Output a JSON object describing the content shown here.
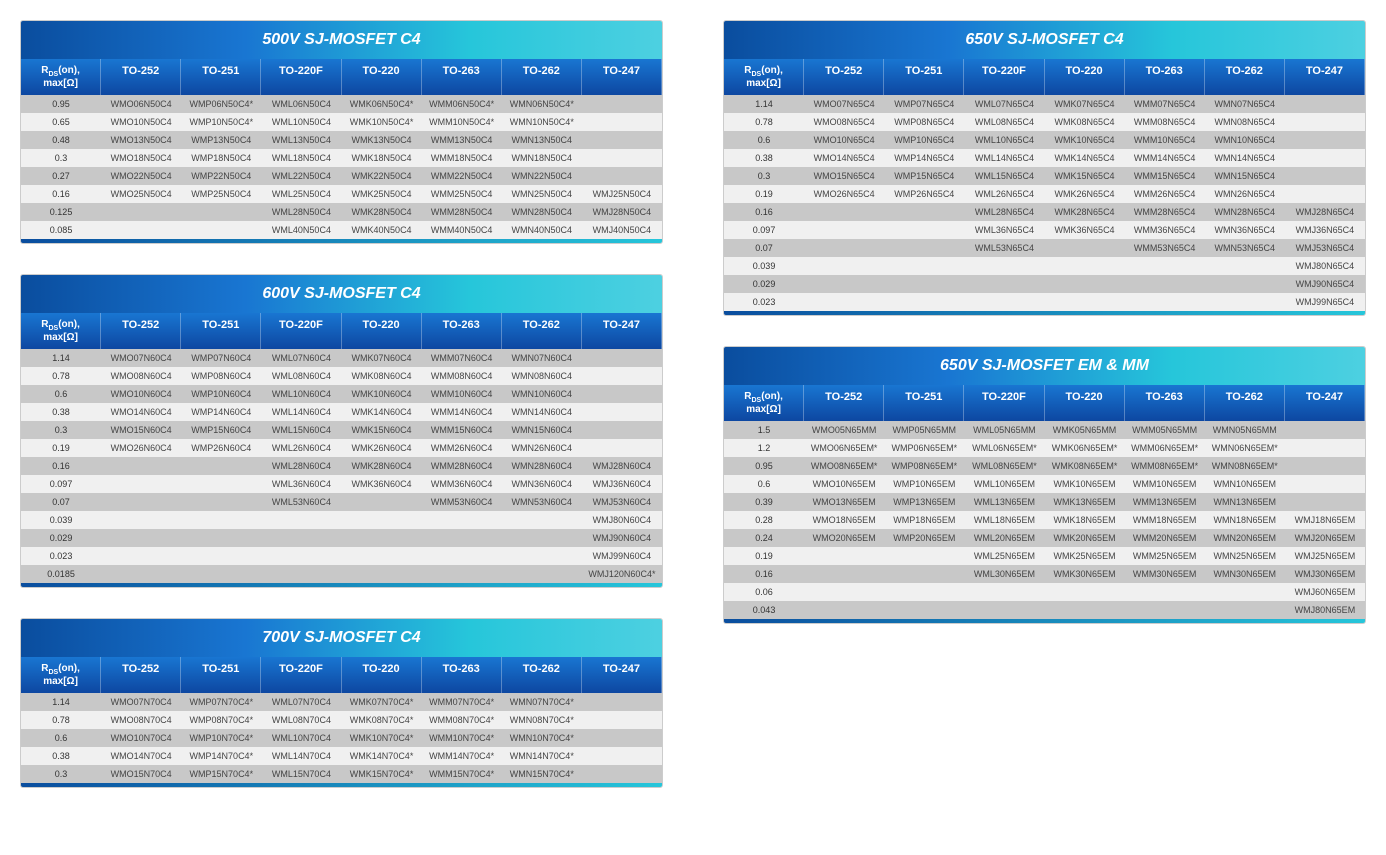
{
  "columns": [
    "R_DS(on), max[Ω]",
    "TO-252",
    "TO-251",
    "TO-220F",
    "TO-220",
    "TO-263",
    "TO-262",
    "TO-247"
  ],
  "tables": [
    {
      "title": "500V SJ-MOSFET C4",
      "col": 0,
      "rows": [
        [
          "0.95",
          "WMO06N50C4",
          "WMP06N50C4*",
          "WML06N50C4",
          "WMK06N50C4*",
          "WMM06N50C4*",
          "WMN06N50C4*",
          ""
        ],
        [
          "0.65",
          "WMO10N50C4",
          "WMP10N50C4*",
          "WML10N50C4",
          "WMK10N50C4*",
          "WMM10N50C4*",
          "WMN10N50C4*",
          ""
        ],
        [
          "0.48",
          "WMO13N50C4",
          "WMP13N50C4",
          "WML13N50C4",
          "WMK13N50C4",
          "WMM13N50C4",
          "WMN13N50C4",
          ""
        ],
        [
          "0.3",
          "WMO18N50C4",
          "WMP18N50C4",
          "WML18N50C4",
          "WMK18N50C4",
          "WMM18N50C4",
          "WMN18N50C4",
          ""
        ],
        [
          "0.27",
          "WMO22N50C4",
          "WMP22N50C4",
          "WML22N50C4",
          "WMK22N50C4",
          "WMM22N50C4",
          "WMN22N50C4",
          ""
        ],
        [
          "0.16",
          "WMO25N50C4",
          "WMP25N50C4",
          "WML25N50C4",
          "WMK25N50C4",
          "WMM25N50C4",
          "WMN25N50C4",
          "WMJ25N50C4"
        ],
        [
          "0.125",
          "",
          "",
          "WML28N50C4",
          "WMK28N50C4",
          "WMM28N50C4",
          "WMN28N50C4",
          "WMJ28N50C4"
        ],
        [
          "0.085",
          "",
          "",
          "WML40N50C4",
          "WMK40N50C4",
          "WMM40N50C4",
          "WMN40N50C4",
          "WMJ40N50C4"
        ]
      ]
    },
    {
      "title": "600V SJ-MOSFET C4",
      "col": 0,
      "rows": [
        [
          "1.14",
          "WMO07N60C4",
          "WMP07N60C4",
          "WML07N60C4",
          "WMK07N60C4",
          "WMM07N60C4",
          "WMN07N60C4",
          ""
        ],
        [
          "0.78",
          "WMO08N60C4",
          "WMP08N60C4",
          "WML08N60C4",
          "WMK08N60C4",
          "WMM08N60C4",
          "WMN08N60C4",
          ""
        ],
        [
          "0.6",
          "WMO10N60C4",
          "WMP10N60C4",
          "WML10N60C4",
          "WMK10N60C4",
          "WMM10N60C4",
          "WMN10N60C4",
          ""
        ],
        [
          "0.38",
          "WMO14N60C4",
          "WMP14N60C4",
          "WML14N60C4",
          "WMK14N60C4",
          "WMM14N60C4",
          "WMN14N60C4",
          ""
        ],
        [
          "0.3",
          "WMO15N60C4",
          "WMP15N60C4",
          "WML15N60C4",
          "WMK15N60C4",
          "WMM15N60C4",
          "WMN15N60C4",
          ""
        ],
        [
          "0.19",
          "WMO26N60C4",
          "WMP26N60C4",
          "WML26N60C4",
          "WMK26N60C4",
          "WMM26N60C4",
          "WMN26N60C4",
          ""
        ],
        [
          "0.16",
          "",
          "",
          "WML28N60C4",
          "WMK28N60C4",
          "WMM28N60C4",
          "WMN28N60C4",
          "WMJ28N60C4"
        ],
        [
          "0.097",
          "",
          "",
          "WML36N60C4",
          "WMK36N60C4",
          "WMM36N60C4",
          "WMN36N60C4",
          "WMJ36N60C4"
        ],
        [
          "0.07",
          "",
          "",
          "WML53N60C4",
          "",
          "WMM53N60C4",
          "WMN53N60C4",
          "WMJ53N60C4"
        ],
        [
          "0.039",
          "",
          "",
          "",
          "",
          "",
          "",
          "WMJ80N60C4"
        ],
        [
          "0.029",
          "",
          "",
          "",
          "",
          "",
          "",
          "WMJ90N60C4"
        ],
        [
          "0.023",
          "",
          "",
          "",
          "",
          "",
          "",
          "WMJ99N60C4"
        ],
        [
          "0.0185",
          "",
          "",
          "",
          "",
          "",
          "",
          "WMJ120N60C4*"
        ]
      ]
    },
    {
      "title": "700V SJ-MOSFET C4",
      "col": 0,
      "rows": [
        [
          "1.14",
          "WMO07N70C4",
          "WMP07N70C4*",
          "WML07N70C4",
          "WMK07N70C4*",
          "WMM07N70C4*",
          "WMN07N70C4*",
          ""
        ],
        [
          "0.78",
          "WMO08N70C4",
          "WMP08N70C4*",
          "WML08N70C4",
          "WMK08N70C4*",
          "WMM08N70C4*",
          "WMN08N70C4*",
          ""
        ],
        [
          "0.6",
          "WMO10N70C4",
          "WMP10N70C4*",
          "WML10N70C4",
          "WMK10N70C4*",
          "WMM10N70C4*",
          "WMN10N70C4*",
          ""
        ],
        [
          "0.38",
          "WMO14N70C4",
          "WMP14N70C4*",
          "WML14N70C4",
          "WMK14N70C4*",
          "WMM14N70C4*",
          "WMN14N70C4*",
          ""
        ],
        [
          "0.3",
          "WMO15N70C4",
          "WMP15N70C4*",
          "WML15N70C4",
          "WMK15N70C4*",
          "WMM15N70C4*",
          "WMN15N70C4*",
          ""
        ]
      ]
    },
    {
      "title": "650V SJ-MOSFET C4",
      "col": 1,
      "rows": [
        [
          "1.14",
          "WMO07N65C4",
          "WMP07N65C4",
          "WML07N65C4",
          "WMK07N65C4",
          "WMM07N65C4",
          "WMN07N65C4",
          ""
        ],
        [
          "0.78",
          "WMO08N65C4",
          "WMP08N65C4",
          "WML08N65C4",
          "WMK08N65C4",
          "WMM08N65C4",
          "WMN08N65C4",
          ""
        ],
        [
          "0.6",
          "WMO10N65C4",
          "WMP10N65C4",
          "WML10N65C4",
          "WMK10N65C4",
          "WMM10N65C4",
          "WMN10N65C4",
          ""
        ],
        [
          "0.38",
          "WMO14N65C4",
          "WMP14N65C4",
          "WML14N65C4",
          "WMK14N65C4",
          "WMM14N65C4",
          "WMN14N65C4",
          ""
        ],
        [
          "0.3",
          "WMO15N65C4",
          "WMP15N65C4",
          "WML15N65C4",
          "WMK15N65C4",
          "WMM15N65C4",
          "WMN15N65C4",
          ""
        ],
        [
          "0.19",
          "WMO26N65C4",
          "WMP26N65C4",
          "WML26N65C4",
          "WMK26N65C4",
          "WMM26N65C4",
          "WMN26N65C4",
          ""
        ],
        [
          "0.16",
          "",
          "",
          "WML28N65C4",
          "WMK28N65C4",
          "WMM28N65C4",
          "WMN28N65C4",
          "WMJ28N65C4"
        ],
        [
          "0.097",
          "",
          "",
          "WML36N65C4",
          "WMK36N65C4",
          "WMM36N65C4",
          "WMN36N65C4",
          "WMJ36N65C4"
        ],
        [
          "0.07",
          "",
          "",
          "WML53N65C4",
          "",
          "WMM53N65C4",
          "WMN53N65C4",
          "WMJ53N65C4"
        ],
        [
          "0.039",
          "",
          "",
          "",
          "",
          "",
          "",
          "WMJ80N65C4"
        ],
        [
          "0.029",
          "",
          "",
          "",
          "",
          "",
          "",
          "WMJ90N65C4"
        ],
        [
          "0.023",
          "",
          "",
          "",
          "",
          "",
          "",
          "WMJ99N65C4"
        ]
      ]
    },
    {
      "title": "650V SJ-MOSFET EM & MM",
      "col": 1,
      "rows": [
        [
          "1.5",
          "WMO05N65MM",
          "WMP05N65MM",
          "WML05N65MM",
          "WMK05N65MM",
          "WMM05N65MM",
          "WMN05N65MM",
          ""
        ],
        [
          "1.2",
          "WMO06N65EM*",
          "WMP06N65EM*",
          "WML06N65EM*",
          "WMK06N65EM*",
          "WMM06N65EM*",
          "WMN06N65EM*",
          ""
        ],
        [
          "0.95",
          "WMO08N65EM*",
          "WMP08N65EM*",
          "WML08N65EM*",
          "WMK08N65EM*",
          "WMM08N65EM*",
          "WMN08N65EM*",
          ""
        ],
        [
          "0.6",
          "WMO10N65EM",
          "WMP10N65EM",
          "WML10N65EM",
          "WMK10N65EM",
          "WMM10N65EM",
          "WMN10N65EM",
          ""
        ],
        [
          "0.39",
          "WMO13N65EM",
          "WMP13N65EM",
          "WML13N65EM",
          "WMK13N65EM",
          "WMM13N65EM",
          "WMN13N65EM",
          ""
        ],
        [
          "0.28",
          "WMO18N65EM",
          "WMP18N65EM",
          "WML18N65EM",
          "WMK18N65EM",
          "WMM18N65EM",
          "WMN18N65EM",
          "WMJ18N65EM"
        ],
        [
          "0.24",
          "WMO20N65EM",
          "WMP20N65EM",
          "WML20N65EM",
          "WMK20N65EM",
          "WMM20N65EM",
          "WMN20N65EM",
          "WMJ20N65EM"
        ],
        [
          "0.19",
          "",
          "",
          "WML25N65EM",
          "WMK25N65EM",
          "WMM25N65EM",
          "WMN25N65EM",
          "WMJ25N65EM"
        ],
        [
          "0.16",
          "",
          "",
          "WML30N65EM",
          "WMK30N65EM",
          "WMM30N65EM",
          "WMN30N65EM",
          "WMJ30N65EM"
        ],
        [
          "0.06",
          "",
          "",
          "",
          "",
          "",
          "",
          "WMJ60N65EM"
        ],
        [
          "0.043",
          "",
          "",
          "",
          "",
          "",
          "",
          "WMJ80N65EM"
        ]
      ]
    }
  ]
}
